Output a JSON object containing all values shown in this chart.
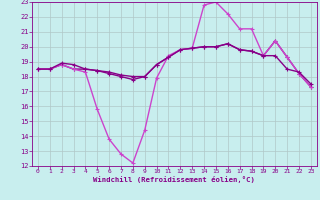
{
  "xlabel": "Windchill (Refroidissement éolien,°C)",
  "xlim": [
    -0.5,
    23.5
  ],
  "ylim": [
    12,
    23
  ],
  "xticks": [
    0,
    1,
    2,
    3,
    4,
    5,
    6,
    7,
    8,
    9,
    10,
    11,
    12,
    13,
    14,
    15,
    16,
    17,
    18,
    19,
    20,
    21,
    22,
    23
  ],
  "yticks": [
    12,
    13,
    14,
    15,
    16,
    17,
    18,
    19,
    20,
    21,
    22,
    23
  ],
  "bg_color": "#c8eeee",
  "grid_color": "#b0c8c8",
  "line_dark": "#880088",
  "line_bright": "#cc44cc",
  "lines": [
    {
      "x": [
        0,
        1,
        2,
        3,
        4,
        5,
        6,
        7,
        8,
        9,
        10,
        11,
        12,
        13,
        14,
        15,
        16,
        17,
        18,
        19,
        20,
        21,
        22,
        23
      ],
      "y": [
        18.5,
        18.5,
        18.8,
        18.5,
        18.5,
        18.4,
        18.3,
        18.1,
        18.0,
        18.0,
        18.8,
        19.3,
        19.8,
        19.9,
        20.0,
        20.0,
        20.2,
        19.8,
        19.7,
        19.4,
        20.4,
        19.3,
        18.2,
        17.3
      ],
      "color": "#880088",
      "lw": 1.0,
      "marker": "+"
    },
    {
      "x": [
        0,
        1,
        2,
        3,
        4,
        5,
        6,
        7,
        8,
        9,
        10,
        11,
        12,
        13,
        14,
        15,
        16,
        17,
        18,
        19,
        20,
        21,
        22,
        23
      ],
      "y": [
        18.5,
        18.5,
        18.8,
        18.5,
        18.3,
        15.8,
        13.8,
        12.8,
        12.2,
        14.4,
        17.9,
        19.4,
        19.8,
        19.9,
        22.8,
        23.0,
        22.2,
        21.2,
        21.2,
        19.4,
        20.4,
        19.3,
        18.2,
        17.3
      ],
      "color": "#cc44cc",
      "lw": 1.0,
      "marker": "+"
    },
    {
      "x": [
        0,
        1,
        2,
        3,
        4,
        5,
        6,
        7,
        8,
        9,
        10,
        11,
        12,
        13,
        14,
        15,
        16,
        17,
        18,
        19,
        20,
        21,
        22,
        23
      ],
      "y": [
        18.5,
        18.5,
        18.9,
        18.8,
        18.5,
        18.4,
        18.2,
        18.0,
        17.8,
        18.0,
        18.8,
        19.3,
        19.8,
        19.9,
        20.0,
        20.0,
        20.2,
        19.8,
        19.7,
        19.4,
        19.4,
        18.5,
        18.3,
        17.5
      ],
      "color": "#880088",
      "lw": 1.0,
      "marker": "+"
    }
  ]
}
